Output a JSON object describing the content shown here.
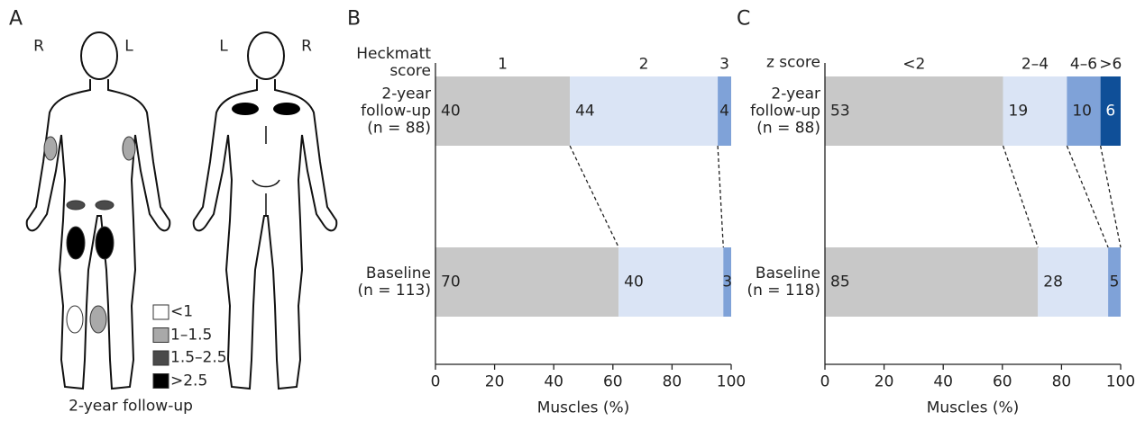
{
  "panel_a": {
    "label": "A",
    "front_sides": [
      "R",
      "L"
    ],
    "back_sides": [
      "L",
      "R"
    ],
    "legend": [
      {
        "label": "<1",
        "color": "#ffffff"
      },
      {
        "label": "1–1.5",
        "color": "#a9a9a9"
      },
      {
        "label": "1.5–2.5",
        "color": "#4a4a4a"
      },
      {
        "label": ">2.5",
        "color": "#000000"
      }
    ],
    "caption": "2-year follow-up"
  },
  "chart_data": [
    {
      "type": "bar",
      "panel": "B",
      "orientation": "horizontal",
      "stacked": true,
      "normalize": true,
      "legend_title": "Heckmatt\nscore",
      "categories": [
        "2-year\nfollow-up\n(n = 88)",
        "Baseline\n(n = 113)"
      ],
      "series": [
        {
          "name": "1",
          "color": "#c8c8c8",
          "values": [
            40,
            70
          ]
        },
        {
          "name": "2",
          "color": "#dae4f5",
          "values": [
            44,
            40
          ]
        },
        {
          "name": "3",
          "color": "#7fa2d8",
          "values": [
            4,
            3
          ]
        }
      ],
      "xlim": [
        0,
        100
      ],
      "xticks": [
        0,
        20,
        40,
        60,
        80,
        100
      ],
      "xlabel": "Muscles (%)"
    },
    {
      "type": "bar",
      "panel": "C",
      "orientation": "horizontal",
      "stacked": true,
      "normalize": true,
      "legend_title": "z score",
      "categories": [
        "2-year\nfollow-up\n(n = 88)",
        "Baseline\n(n = 118)"
      ],
      "series": [
        {
          "name": "<2",
          "color": "#c8c8c8",
          "values": [
            53,
            85
          ]
        },
        {
          "name": "2–4",
          "color": "#dae4f5",
          "values": [
            19,
            28
          ]
        },
        {
          "name": "4–6",
          "color": "#7fa2d8",
          "values": [
            10,
            5
          ]
        },
        {
          "name": ">6",
          "color": "#0f4f98",
          "label_color": "#ffffff",
          "values": [
            6,
            0
          ]
        }
      ],
      "xlim": [
        0,
        100
      ],
      "xticks": [
        0,
        20,
        40,
        60,
        80,
        100
      ],
      "xlabel": "Muscles (%)"
    }
  ]
}
